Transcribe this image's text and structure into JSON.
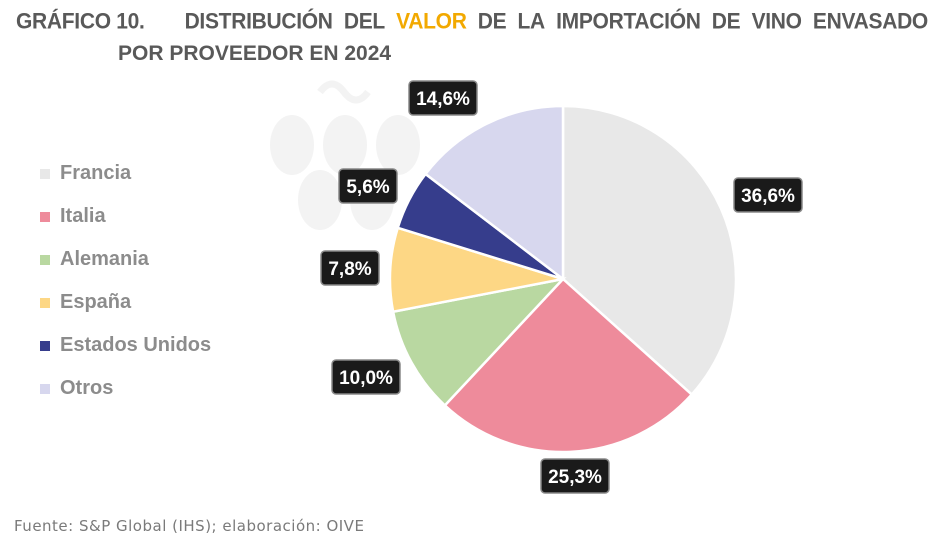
{
  "title": {
    "number": "GRÁFICO 10.",
    "words": [
      "DISTRIBUCIÓN",
      "DEL",
      "VALOR",
      "DE",
      "LA",
      "IMPORTACIÓN",
      "DE",
      "VINO",
      "ENVASADO"
    ],
    "highlight_index": 2,
    "line2": "POR PROVEEDOR EN 2024",
    "highlight_color": "#f2a900"
  },
  "chart_data": {
    "type": "pie",
    "title": "DISTRIBUCIÓN DEL VALOR DE LA IMPORTACIÓN DE VINO ENVASADO POR PROVEEDOR EN 2024",
    "legend_position": "left",
    "categories": [
      "Francia",
      "Italia",
      "Alemania",
      "España",
      "Estados Unidos",
      "Otros"
    ],
    "values": [
      36.6,
      25.3,
      10.0,
      7.8,
      5.6,
      14.6
    ],
    "labels": [
      "36,6%",
      "25,3%",
      "10,0%",
      "7,8%",
      "5,6%",
      "14,6%"
    ],
    "colors": [
      "#e8e8e8",
      "#ee8b9b",
      "#b9d8a1",
      "#fdd785",
      "#363d8c",
      "#d7d7ee"
    ]
  },
  "footer": "Fuente: S&P Global (IHS); elaboración: OIVE"
}
